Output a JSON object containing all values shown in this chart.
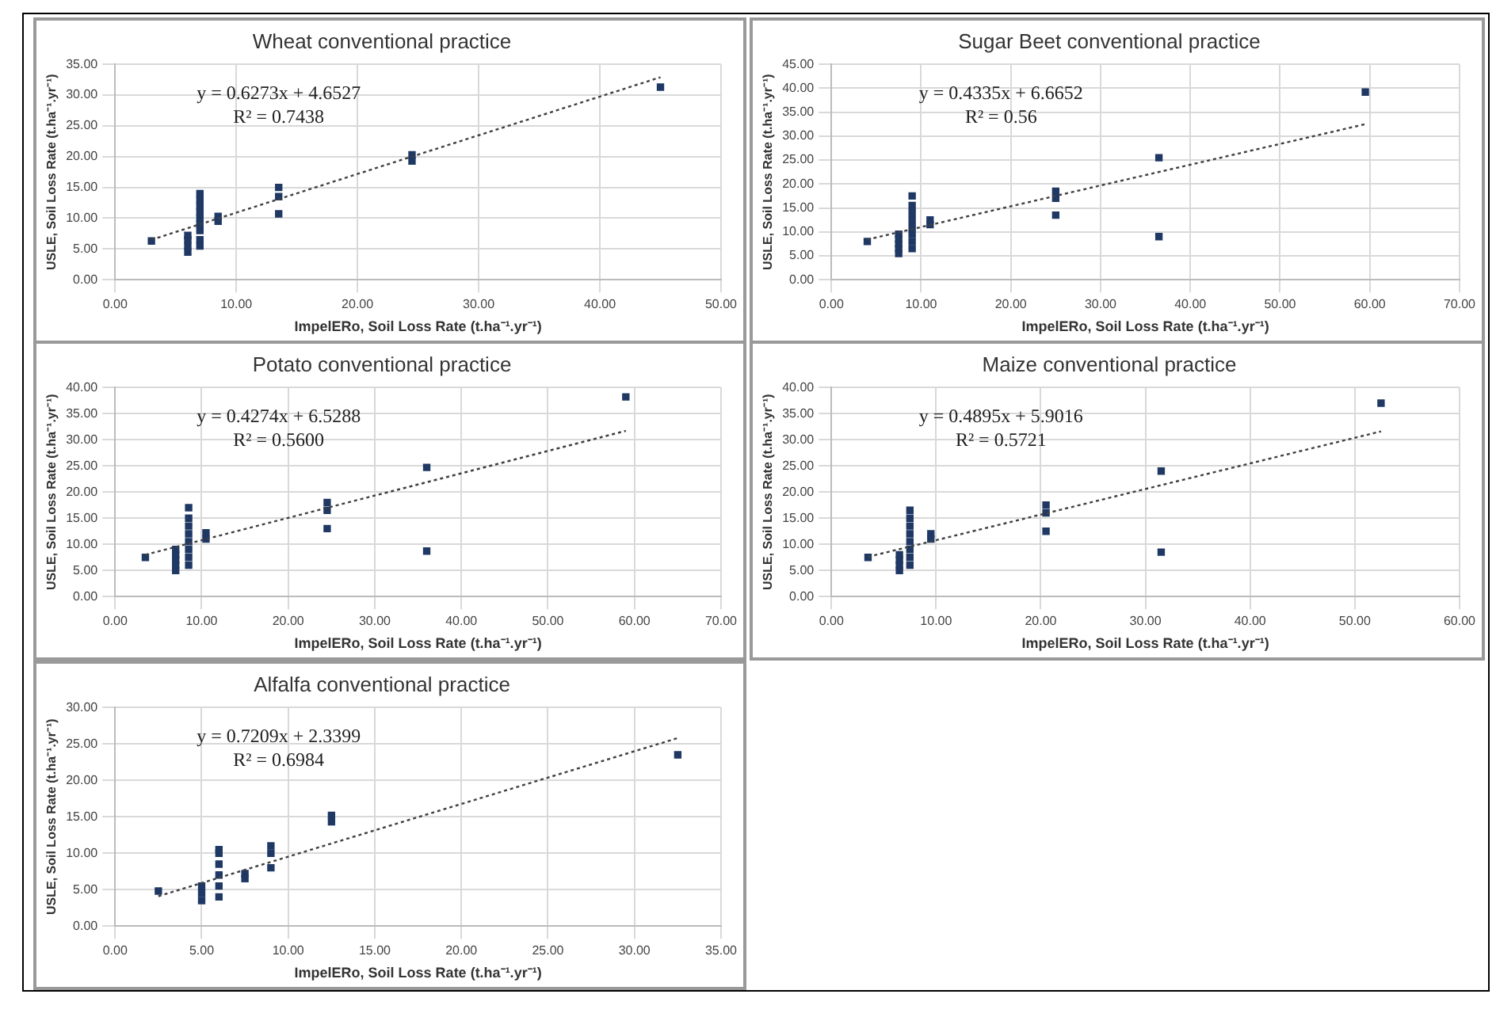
{
  "chart_data": [
    {
      "type": "scatter",
      "title": "Wheat conventional practice",
      "xlabel": "ImpelERo, Soil Loss Rate (t.ha⁻¹.yr⁻¹)",
      "ylabel": "USLE, Soil Loss Rate (t.ha⁻¹.yr⁻¹)",
      "xlim": [
        0,
        50
      ],
      "xticks": [
        {
          "value": 0,
          "label": "0.00"
        },
        {
          "value": 10,
          "label": "10.00"
        },
        {
          "value": 20,
          "label": "20.00"
        },
        {
          "value": 30,
          "label": "30.00"
        },
        {
          "value": 40,
          "label": "40.00"
        },
        {
          "value": 50,
          "label": "50.00"
        }
      ],
      "ylim": [
        0,
        35
      ],
      "yticks": [
        {
          "value": 0,
          "label": "0.00"
        },
        {
          "value": 5,
          "label": "5.00"
        },
        {
          "value": 10,
          "label": "10.00"
        },
        {
          "value": 15,
          "label": "15.00"
        },
        {
          "value": 20,
          "label": "20.00"
        },
        {
          "value": 25,
          "label": "25.00"
        },
        {
          "value": 30,
          "label": "30.00"
        },
        {
          "value": 35,
          "label": "35.00"
        }
      ],
      "grid": true,
      "marker": "square",
      "annotations": [
        "y = 0.6273x + 4.6527",
        "R² = 0.7438"
      ],
      "series": [
        {
          "color": "#1f3864",
          "x": [
            3,
            6,
            6,
            6,
            6,
            7,
            7,
            7,
            7,
            7,
            7,
            7,
            7,
            7,
            8.5,
            8.5,
            13.5,
            13.5,
            13.5,
            24.5,
            24.5,
            45
          ],
          "values": [
            6.3,
            4.5,
            5.5,
            6.5,
            7.2,
            5.5,
            6.5,
            8,
            9,
            10,
            11,
            12,
            13,
            14,
            9.5,
            10.3,
            10.7,
            13.5,
            15,
            19.3,
            20.3,
            31.3
          ]
        },
        {
          "type": "line",
          "color": "#404040",
          "line_style": "dotted",
          "marker": "none",
          "x": [
            3,
            45
          ],
          "values": [
            6.5,
            32.9
          ]
        }
      ]
    },
    {
      "type": "scatter",
      "title": "Sugar Beet conventional practice",
      "xlabel": "ImpelERo, Soil Loss Rate (t.ha⁻¹.yr⁻¹)",
      "ylabel": "USLE, Soil Loss Rate (t.ha⁻¹.yr⁻¹)",
      "xlim": [
        0,
        70
      ],
      "xticks": [
        {
          "value": 0,
          "label": "0.00"
        },
        {
          "value": 10,
          "label": "10.00"
        },
        {
          "value": 20,
          "label": "20.00"
        },
        {
          "value": 30,
          "label": "30.00"
        },
        {
          "value": 40,
          "label": "40.00"
        },
        {
          "value": 50,
          "label": "50.00"
        },
        {
          "value": 60,
          "label": "60.00"
        },
        {
          "value": 70,
          "label": "70.00"
        }
      ],
      "ylim": [
        0,
        45
      ],
      "yticks": [
        {
          "value": 0,
          "label": "0.00"
        },
        {
          "value": 5,
          "label": "5.00"
        },
        {
          "value": 10,
          "label": "10.00"
        },
        {
          "value": 15,
          "label": "15.00"
        },
        {
          "value": 20,
          "label": "20.00"
        },
        {
          "value": 25,
          "label": "25.00"
        },
        {
          "value": 30,
          "label": "30.00"
        },
        {
          "value": 35,
          "label": "35.00"
        },
        {
          "value": 40,
          "label": "40.00"
        },
        {
          "value": 45,
          "label": "45.00"
        }
      ],
      "grid": true,
      "marker": "square",
      "annotations": [
        "y = 0.4335x + 6.6652",
        "R² = 0.56"
      ],
      "series": [
        {
          "color": "#1f3864",
          "x": [
            4,
            7.5,
            7.5,
            7.5,
            7.5,
            7.5,
            9,
            9,
            9,
            9,
            9,
            9,
            9,
            9,
            11,
            11,
            25,
            25,
            25,
            36.5,
            36.5,
            59.5
          ],
          "values": [
            8,
            5.5,
            6.5,
            7.5,
            8.5,
            9.5,
            6.5,
            8,
            9.5,
            11,
            12.5,
            14,
            15.5,
            17.5,
            11.5,
            12.5,
            13.5,
            17,
            18.5,
            9,
            25.5,
            39.2
          ]
        },
        {
          "type": "line",
          "color": "#404040",
          "line_style": "dotted",
          "marker": "none",
          "x": [
            4,
            59.5
          ],
          "values": [
            8.4,
            32.5
          ]
        }
      ]
    },
    {
      "type": "scatter",
      "title": "Potato conventional practice",
      "xlabel": "ImpelERo, Soil Loss Rate (t.ha⁻¹.yr⁻¹)",
      "ylabel": "USLE, Soil Loss Rate (t.ha⁻¹.yr⁻¹)",
      "xlim": [
        0,
        70
      ],
      "xticks": [
        {
          "value": 0,
          "label": "0.00"
        },
        {
          "value": 10,
          "label": "10.00"
        },
        {
          "value": 20,
          "label": "20.00"
        },
        {
          "value": 30,
          "label": "30.00"
        },
        {
          "value": 40,
          "label": "40.00"
        },
        {
          "value": 50,
          "label": "50.00"
        },
        {
          "value": 60,
          "label": "60.00"
        },
        {
          "value": 70,
          "label": "70.00"
        }
      ],
      "ylim": [
        0,
        40
      ],
      "yticks": [
        {
          "value": 0,
          "label": "0.00"
        },
        {
          "value": 5,
          "label": "5.00"
        },
        {
          "value": 10,
          "label": "10.00"
        },
        {
          "value": 15,
          "label": "15.00"
        },
        {
          "value": 20,
          "label": "20.00"
        },
        {
          "value": 25,
          "label": "25.00"
        },
        {
          "value": 30,
          "label": "30.00"
        },
        {
          "value": 35,
          "label": "35.00"
        },
        {
          "value": 40,
          "label": "40.00"
        }
      ],
      "grid": true,
      "marker": "square",
      "annotations": [
        "y = 0.4274x + 6.5288",
        "R² = 0.5600"
      ],
      "series": [
        {
          "color": "#1f3864",
          "x": [
            3.5,
            7,
            7,
            7,
            7,
            7,
            8.5,
            8.5,
            8.5,
            8.5,
            8.5,
            8.5,
            8.5,
            8.5,
            10.5,
            10.5,
            24.5,
            24.5,
            24.5,
            36,
            36,
            59
          ],
          "values": [
            7.5,
            5,
            6,
            7,
            8,
            9,
            6,
            7.5,
            9,
            10.5,
            12,
            13.5,
            15,
            17,
            11,
            12.2,
            13,
            16.5,
            18,
            8.7,
            24.7,
            38.2
          ]
        },
        {
          "type": "line",
          "color": "#404040",
          "line_style": "dotted",
          "marker": "none",
          "x": [
            3.5,
            59
          ],
          "values": [
            8,
            31.7
          ]
        }
      ]
    },
    {
      "type": "scatter",
      "title": "Maize conventional practice",
      "xlabel": "ImpelERo, Soil Loss Rate (t.ha⁻¹.yr⁻¹)",
      "ylabel": "USLE, Soil Loss Rate (t.ha⁻¹.yr⁻¹)",
      "xlim": [
        0,
        60
      ],
      "xticks": [
        {
          "value": 0,
          "label": "0.00"
        },
        {
          "value": 10,
          "label": "10.00"
        },
        {
          "value": 20,
          "label": "20.00"
        },
        {
          "value": 30,
          "label": "30.00"
        },
        {
          "value": 40,
          "label": "40.00"
        },
        {
          "value": 50,
          "label": "50.00"
        },
        {
          "value": 60,
          "label": "60.00"
        }
      ],
      "ylim": [
        0,
        40
      ],
      "yticks": [
        {
          "value": 0,
          "label": "0.00"
        },
        {
          "value": 5,
          "label": "5.00"
        },
        {
          "value": 10,
          "label": "10.00"
        },
        {
          "value": 15,
          "label": "15.00"
        },
        {
          "value": 20,
          "label": "20.00"
        },
        {
          "value": 25,
          "label": "25.00"
        },
        {
          "value": 30,
          "label": "30.00"
        },
        {
          "value": 35,
          "label": "35.00"
        },
        {
          "value": 40,
          "label": "40.00"
        }
      ],
      "grid": true,
      "marker": "square",
      "annotations": [
        "y = 0.4895x + 5.9016",
        "R² = 0.5721"
      ],
      "series": [
        {
          "color": "#1f3864",
          "x": [
            3.5,
            6.5,
            6.5,
            6.5,
            6.5,
            7.5,
            7.5,
            7.5,
            7.5,
            7.5,
            7.5,
            7.5,
            7.5,
            9.5,
            9.5,
            20.5,
            20.5,
            20.5,
            31.5,
            31.5,
            52.5
          ],
          "values": [
            7.5,
            5,
            6,
            7,
            8,
            6,
            7.5,
            9,
            10.5,
            12,
            13.5,
            15,
            16.5,
            11,
            12,
            12.5,
            16,
            17.5,
            8.5,
            24,
            37
          ]
        },
        {
          "type": "line",
          "color": "#404040",
          "line_style": "dotted",
          "marker": "none",
          "x": [
            3.5,
            52.5
          ],
          "values": [
            7.6,
            31.6
          ]
        }
      ]
    },
    {
      "type": "scatter",
      "title": "Alfalfa conventional practice",
      "xlabel": "ImpelERo, Soil Loss Rate (t.ha⁻¹.yr⁻¹)",
      "ylabel": "USLE, Soil Loss Rate (t.ha⁻¹.yr⁻¹)",
      "xlim": [
        0,
        35
      ],
      "xticks": [
        {
          "value": 0,
          "label": "0.00"
        },
        {
          "value": 5,
          "label": "5.00"
        },
        {
          "value": 10,
          "label": "10.00"
        },
        {
          "value": 15,
          "label": "15.00"
        },
        {
          "value": 20,
          "label": "20.00"
        },
        {
          "value": 25,
          "label": "25.00"
        },
        {
          "value": 30,
          "label": "30.00"
        },
        {
          "value": 35,
          "label": "35.00"
        }
      ],
      "ylim": [
        0,
        30
      ],
      "yticks": [
        {
          "value": 0,
          "label": "0.00"
        },
        {
          "value": 5,
          "label": "5.00"
        },
        {
          "value": 10,
          "label": "10.00"
        },
        {
          "value": 15,
          "label": "15.00"
        },
        {
          "value": 20,
          "label": "20.00"
        },
        {
          "value": 25,
          "label": "25.00"
        },
        {
          "value": 30,
          "label": "30.00"
        }
      ],
      "grid": true,
      "marker": "square",
      "annotations": [
        "y = 0.7209x + 2.3399",
        "R² = 0.6984"
      ],
      "series": [
        {
          "color": "#1f3864",
          "x": [
            2.5,
            5,
            5,
            5,
            6,
            6,
            6,
            6,
            6,
            6,
            7.5,
            7.5,
            9,
            9,
            9,
            12.5,
            12.5,
            32.5
          ],
          "values": [
            4.8,
            3.5,
            4.5,
            5.5,
            4,
            5.5,
            7,
            8.5,
            10,
            10.5,
            6.5,
            7.2,
            8,
            10,
            11,
            14.3,
            15.2,
            23.5
          ]
        },
        {
          "type": "line",
          "color": "#404040",
          "line_style": "dotted",
          "marker": "none",
          "x": [
            2.5,
            32.5
          ],
          "values": [
            4.1,
            25.8
          ]
        }
      ]
    }
  ]
}
